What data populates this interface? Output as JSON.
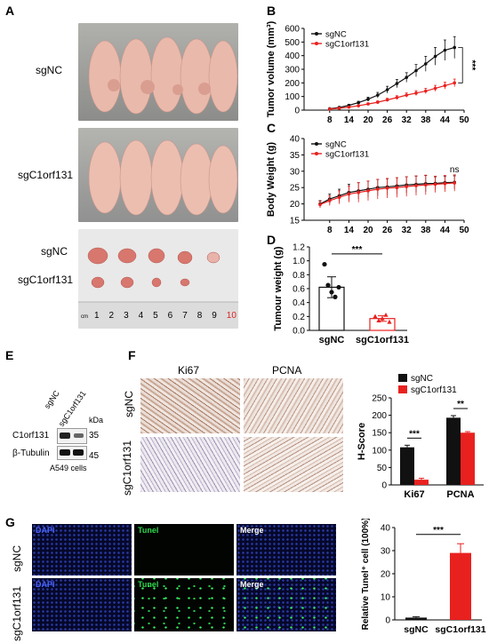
{
  "panels": {
    "A": {
      "letter": "A",
      "rows": [
        "sgNC",
        "sgC1orf131"
      ],
      "tumor_rows": [
        "sgNC",
        "sgC1orf131"
      ],
      "ruler_unit": "cm",
      "ruler_ticks": [
        "1",
        "2",
        "3",
        "4",
        "5",
        "6",
        "7",
        "8",
        "9",
        "10"
      ]
    },
    "B": {
      "letter": "B"
    },
    "C": {
      "letter": "C"
    },
    "D": {
      "letter": "D"
    },
    "E": {
      "letter": "E",
      "lanes": [
        "sgNC",
        "sgC1orf131"
      ],
      "kda": "kDa",
      "bands": [
        {
          "name": "C1orf131",
          "kda": "35"
        },
        {
          "name": "β-Tubulin",
          "kda": "45"
        }
      ],
      "cells": "A549 cells"
    },
    "F": {
      "letter": "F",
      "cols": [
        "Ki67",
        "PCNA"
      ],
      "rows": [
        "sgNC",
        "sgC1orf131"
      ]
    },
    "G": {
      "letter": "G",
      "cols": [
        "DAPI",
        "Tunel",
        "Merge"
      ],
      "rows": [
        "sgNC",
        "sgC1orf131"
      ]
    }
  },
  "colors": {
    "ctrl": "#111111",
    "kd": "#e8211f",
    "dapi": "#3b5bff",
    "tunel": "#26d64a"
  },
  "chart_data": [
    {
      "id": "B",
      "type": "line",
      "ylabel": "Tumor volume (mm³)",
      "xlabel": "",
      "x": [
        8,
        11,
        14,
        17,
        20,
        23,
        26,
        29,
        32,
        35,
        38,
        41,
        44,
        47
      ],
      "xticks": [
        "8",
        "14",
        "20",
        "26",
        "32",
        "38",
        "44",
        "50"
      ],
      "xlim": [
        0,
        50
      ],
      "ylim": [
        0,
        600
      ],
      "yticks": [
        "0",
        "100",
        "200",
        "300",
        "400",
        "500",
        "600"
      ],
      "series": [
        {
          "name": "sgNC",
          "values": [
            10,
            20,
            35,
            55,
            80,
            110,
            150,
            195,
            240,
            290,
            340,
            395,
            440,
            460
          ],
          "err": [
            3,
            5,
            8,
            10,
            15,
            20,
            25,
            30,
            35,
            45,
            55,
            65,
            75,
            80
          ]
        },
        {
          "name": "sgC1orf131",
          "values": [
            8,
            14,
            22,
            32,
            45,
            58,
            75,
            92,
            110,
            125,
            140,
            160,
            180,
            200
          ],
          "err": [
            2,
            4,
            5,
            7,
            9,
            10,
            12,
            14,
            16,
            18,
            20,
            22,
            25,
            28
          ]
        }
      ],
      "annotation": "***",
      "legend": "top-left"
    },
    {
      "id": "C",
      "type": "line",
      "ylabel": "Body Weight (g)",
      "xlabel": "",
      "x": [
        5,
        8,
        11,
        14,
        17,
        20,
        23,
        26,
        29,
        32,
        35,
        38,
        41,
        44,
        47
      ],
      "xticks": [
        "8",
        "14",
        "20",
        "26",
        "32",
        "38",
        "44",
        "50"
      ],
      "xlim": [
        0,
        50
      ],
      "ylim": [
        15,
        40
      ],
      "yticks": [
        "15",
        "20",
        "25",
        "30",
        "35",
        "40"
      ],
      "series": [
        {
          "name": "sgNC",
          "values": [
            20,
            21.5,
            22.5,
            23.5,
            24,
            24.5,
            25,
            25.2,
            25.5,
            25.8,
            26,
            26.2,
            26.3,
            26.5,
            26.6
          ],
          "err": [
            1,
            1.5,
            2,
            2.5,
            2.5,
            2.5,
            2.5,
            2.5,
            2.5,
            2.5,
            2.5,
            2.5,
            2,
            2,
            2
          ]
        },
        {
          "name": "sgC1orf131",
          "values": [
            19.8,
            21,
            22,
            23,
            23.5,
            24,
            24.5,
            24.8,
            25,
            25.3,
            25.6,
            25.8,
            26,
            26.2,
            26.4
          ],
          "err": [
            1,
            1.5,
            2,
            2.5,
            3,
            3,
            3,
            3,
            3,
            3,
            3,
            3,
            2.5,
            2.5,
            2.5
          ]
        }
      ],
      "annotation": "ns",
      "legend": "top-left"
    },
    {
      "id": "D",
      "type": "bar",
      "ylabel": "Tumour weight (g)",
      "xlabel": "",
      "categories": [
        "sgNC",
        "sgC1orf131"
      ],
      "values": [
        0.62,
        0.17
      ],
      "err": [
        0.15,
        0.04
      ],
      "points": [
        [
          0.95,
          0.65,
          0.55,
          0.48,
          0.62
        ],
        [
          0.2,
          0.14,
          0.17,
          0.22,
          0.12
        ]
      ],
      "ylim": [
        0,
        1.2
      ],
      "yticks": [
        "0.0",
        "0.2",
        "0.4",
        "0.6",
        "0.8",
        "1.0",
        "1.2"
      ],
      "annotation": "***"
    },
    {
      "id": "F",
      "type": "bar",
      "ylabel": "H-Score",
      "xlabel": "",
      "categories": [
        "Ki67",
        "PCNA"
      ],
      "series": [
        {
          "name": "sgNC",
          "values": [
            108,
            193
          ],
          "err": [
            6,
            6
          ]
        },
        {
          "name": "sgC1orf131",
          "values": [
            15,
            150
          ],
          "err": [
            4,
            3
          ]
        }
      ],
      "ylim": [
        0,
        250
      ],
      "yticks": [
        "0",
        "50",
        "100",
        "150",
        "200",
        "250"
      ],
      "annotations": [
        "***",
        "**"
      ],
      "legend": "top-left"
    },
    {
      "id": "G",
      "type": "bar",
      "ylabel": "Relative Tunel⁺ cell (100%)",
      "xlabel": "",
      "categories": [
        "sgNC",
        "sgC1orf131"
      ],
      "values": [
        1,
        29
      ],
      "err": [
        0.4,
        4
      ],
      "ylim": [
        0,
        40
      ],
      "yticks": [
        "0",
        "10",
        "20",
        "30",
        "40"
      ],
      "annotation": "***"
    }
  ]
}
